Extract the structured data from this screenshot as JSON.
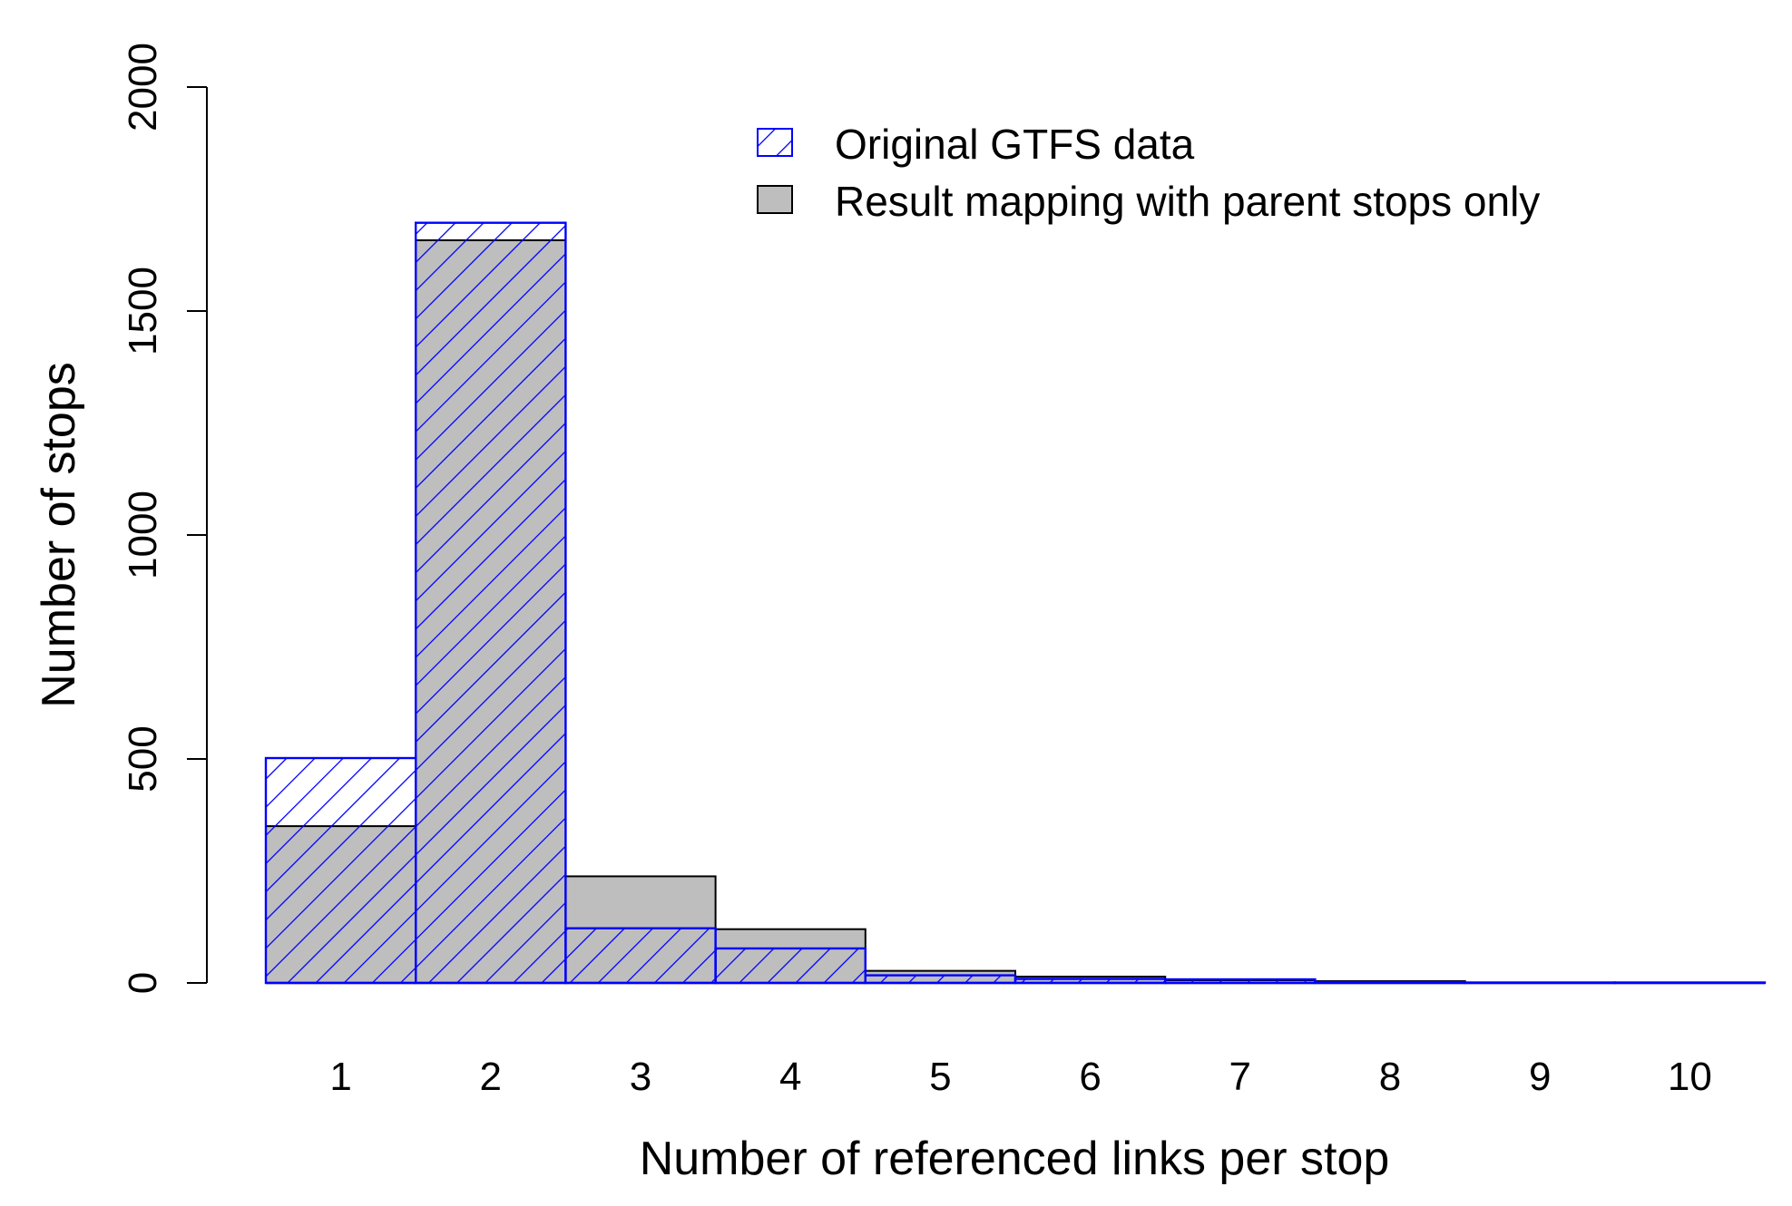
{
  "chart_data": {
    "type": "bar",
    "title": "",
    "xlabel": "Number of referenced links per stop",
    "ylabel": "Number of stops",
    "categories": [
      "1",
      "2",
      "3",
      "4",
      "5",
      "6",
      "7",
      "8",
      "9",
      "10"
    ],
    "ylim": [
      0,
      2000
    ],
    "yticks": [
      0,
      500,
      1000,
      1500,
      2000
    ],
    "series": [
      {
        "name": "Result mapping with parent stops only",
        "fill": "gray",
        "color": "#bebebe",
        "values": [
          350,
          1658,
          238,
          120,
          27,
          14,
          6,
          4,
          1,
          0
        ]
      },
      {
        "name": "Original GTFS data",
        "fill": "hatched",
        "color": "#0000ff",
        "values": [
          502,
          1697,
          122,
          77,
          17,
          9,
          8,
          2,
          1,
          1
        ]
      }
    ],
    "legend": {
      "position": "top-right"
    },
    "grid": false
  }
}
